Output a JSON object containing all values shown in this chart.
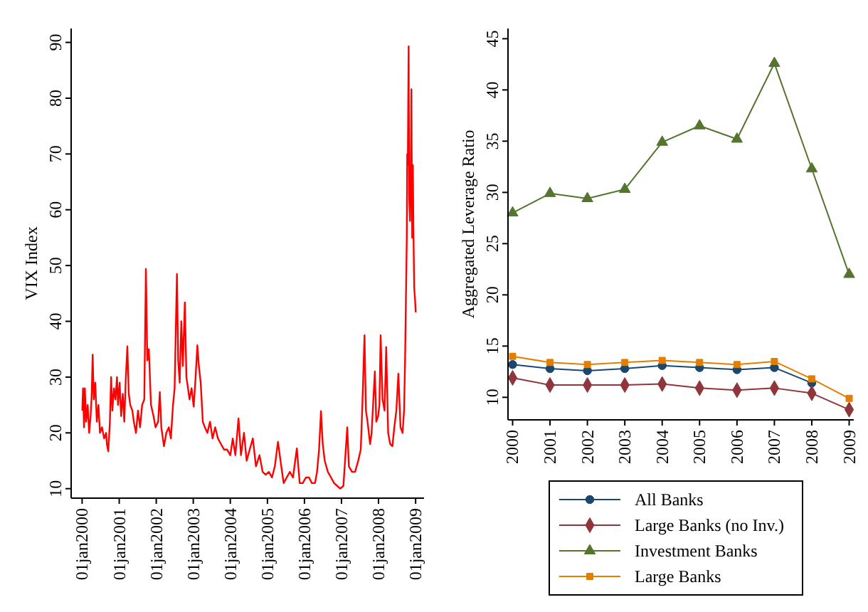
{
  "chart_data": [
    {
      "type": "line",
      "ylabel": "VIX Index",
      "xlim": [
        "1999-09-15",
        "2009-03-25"
      ],
      "ylim": [
        8.3,
        92.5
      ],
      "yticks": [
        10,
        20,
        30,
        40,
        50,
        60,
        70,
        80,
        90
      ],
      "xticks": [
        {
          "value": "2000-01-01",
          "label": "01jan2000"
        },
        {
          "value": "2001-01-01",
          "label": "01jan2001"
        },
        {
          "value": "2002-01-01",
          "label": "01jan2002"
        },
        {
          "value": "2003-01-01",
          "label": "01jan2003"
        },
        {
          "value": "2004-01-01",
          "label": "01jan2004"
        },
        {
          "value": "2005-01-01",
          "label": "01jan2005"
        },
        {
          "value": "2006-01-01",
          "label": "01jan2006"
        },
        {
          "value": "2007-01-01",
          "label": "01jan2007"
        },
        {
          "value": "2008-01-01",
          "label": "01jan2008"
        },
        {
          "value": "2009-01-01",
          "label": "01jan2009"
        }
      ],
      "grid": false,
      "legend": false,
      "marker": "none",
      "line_style": "solid",
      "series": [
        {
          "color": "#ff0000",
          "x": [
            "2000-01-03",
            "2000-01-10",
            "2000-01-20",
            "2000-01-28",
            "2000-02-10",
            "2000-02-25",
            "2000-03-10",
            "2000-03-25",
            "2000-04-05",
            "2000-04-14",
            "2000-04-25",
            "2000-05-10",
            "2000-05-25",
            "2000-06-10",
            "2000-06-25",
            "2000-07-15",
            "2000-08-05",
            "2000-08-25",
            "2000-09-01",
            "2000-09-15",
            "2000-10-01",
            "2000-10-13",
            "2000-10-25",
            "2000-11-10",
            "2000-11-25",
            "2000-12-10",
            "2000-12-20",
            "2001-01-05",
            "2001-01-20",
            "2001-02-05",
            "2001-02-20",
            "2001-03-05",
            "2001-03-22",
            "2001-04-05",
            "2001-04-20",
            "2001-05-10",
            "2001-05-25",
            "2001-06-15",
            "2001-07-05",
            "2001-07-25",
            "2001-08-15",
            "2001-09-05",
            "2001-09-21",
            "2001-10-05",
            "2001-10-20",
            "2001-11-10",
            "2001-12-05",
            "2001-12-25",
            "2002-01-20",
            "2002-02-05",
            "2002-02-20",
            "2002-03-18",
            "2002-04-10",
            "2002-05-05",
            "2002-05-25",
            "2002-06-15",
            "2002-07-01",
            "2002-07-24",
            "2002-08-05",
            "2002-08-20",
            "2002-09-05",
            "2002-09-20",
            "2002-10-10",
            "2002-10-25",
            "2002-11-10",
            "2002-11-25",
            "2002-12-15",
            "2003-01-05",
            "2003-01-24",
            "2003-02-10",
            "2003-02-25",
            "2003-03-15",
            "2003-04-05",
            "2003-04-25",
            "2003-05-20",
            "2003-06-15",
            "2003-07-10",
            "2003-08-05",
            "2003-09-01",
            "2003-10-01",
            "2003-11-01",
            "2003-12-01",
            "2004-01-01",
            "2004-01-25",
            "2004-02-20",
            "2004-03-22",
            "2004-04-15",
            "2004-05-15",
            "2004-06-10",
            "2004-07-10",
            "2004-08-10",
            "2004-09-10",
            "2004-10-15",
            "2004-11-15",
            "2004-12-15",
            "2005-01-15",
            "2005-02-15",
            "2005-03-15",
            "2005-04-15",
            "2005-05-10",
            "2005-06-10",
            "2005-07-10",
            "2005-08-10",
            "2005-09-10",
            "2005-10-18",
            "2005-11-15",
            "2005-12-15",
            "2006-01-15",
            "2006-02-15",
            "2006-03-15",
            "2006-04-15",
            "2006-05-05",
            "2006-05-25",
            "2006-06-13",
            "2006-06-30",
            "2006-07-20",
            "2006-08-20",
            "2006-09-20",
            "2006-10-20",
            "2006-11-20",
            "2006-12-20",
            "2007-01-20",
            "2007-02-27",
            "2007-03-15",
            "2007-04-15",
            "2007-05-15",
            "2007-06-15",
            "2007-07-10",
            "2007-07-26",
            "2007-08-16",
            "2007-08-30",
            "2007-09-15",
            "2007-10-10",
            "2007-10-25",
            "2007-11-26",
            "2007-12-10",
            "2007-12-28",
            "2008-01-10",
            "2008-01-22",
            "2008-02-10",
            "2008-03-01",
            "2008-03-17",
            "2008-04-05",
            "2008-04-25",
            "2008-05-17",
            "2008-06-05",
            "2008-06-25",
            "2008-07-15",
            "2008-08-05",
            "2008-08-25",
            "2008-09-09",
            "2008-09-19",
            "2008-09-29",
            "2008-10-06",
            "2008-10-10",
            "2008-10-16",
            "2008-10-24",
            "2008-10-30",
            "2008-11-07",
            "2008-11-14",
            "2008-11-20",
            "2008-11-28",
            "2008-12-05",
            "2008-12-10",
            "2008-12-18",
            "2008-12-26",
            "2009-01-02"
          ],
          "values": [
            24,
            28,
            21,
            28,
            22,
            25,
            20,
            23,
            27,
            34,
            26,
            29,
            22,
            25,
            20,
            21,
            19,
            20,
            18,
            16.7,
            22,
            30,
            24,
            28,
            26,
            30,
            25,
            29,
            23,
            27,
            22,
            29,
            35.5,
            27,
            25,
            24,
            22,
            20,
            24,
            21,
            25,
            26,
            49.4,
            33,
            35,
            25,
            23,
            21,
            22,
            27.3,
            21,
            17.6,
            20,
            21,
            19,
            25,
            28,
            48.5,
            33,
            29,
            40,
            32,
            43.4,
            30,
            28,
            26,
            28,
            24.7,
            30,
            35.7,
            32,
            29,
            22,
            21,
            20,
            22,
            19,
            21,
            19,
            18,
            17,
            17,
            16,
            19,
            16,
            22.6,
            16,
            20,
            15,
            17,
            19,
            14,
            16,
            13,
            12.5,
            13,
            12,
            14,
            18.4,
            15,
            11,
            12,
            13,
            12,
            17.2,
            11,
            11,
            12,
            12,
            11,
            11,
            13,
            17,
            23.9,
            18,
            15,
            13,
            12,
            11,
            10.5,
            10,
            10.5,
            21,
            14,
            13,
            13,
            15,
            17,
            25,
            37.5,
            24,
            22,
            18,
            20,
            31,
            22,
            23,
            25,
            37.5,
            26,
            24,
            35.4,
            20,
            18,
            17.6,
            21,
            24,
            30.6,
            21,
            20,
            24,
            33,
            46,
            55,
            70,
            68,
            89.3,
            62,
            58,
            66,
            81.6,
            55,
            68,
            57,
            46,
            44,
            41.6
          ]
        }
      ]
    },
    {
      "type": "line",
      "ylabel": "Aggregated Leverage Ratio",
      "categories": [
        "2000",
        "2001",
        "2002",
        "2003",
        "2004",
        "2005",
        "2006",
        "2007",
        "2008",
        "2009"
      ],
      "ylim": [
        7.8,
        46
      ],
      "yticks": [
        10,
        15,
        20,
        25,
        30,
        35,
        40,
        45
      ],
      "grid": false,
      "legend": "bottom",
      "line_style": "solid",
      "series": [
        {
          "name": "All Banks",
          "color": "#1a476f",
          "marker": "circle",
          "values": [
            13.2,
            12.8,
            12.6,
            12.8,
            13.1,
            12.9,
            12.7,
            12.9,
            11.4,
            null
          ]
        },
        {
          "name": "Large Banks (no Inv.)",
          "color": "#90353b",
          "marker": "diamond",
          "values": [
            11.9,
            11.2,
            11.2,
            11.2,
            11.3,
            10.9,
            10.7,
            10.9,
            10.4,
            8.8
          ]
        },
        {
          "name": "Investment Banks",
          "color": "#55752f",
          "marker": "triangle",
          "values": [
            28.0,
            29.9,
            29.4,
            30.3,
            34.9,
            36.5,
            35.2,
            42.6,
            32.3,
            22.0
          ]
        },
        {
          "name": "Large Banks",
          "color": "#e37e00",
          "marker": "square",
          "values": [
            14.0,
            13.4,
            13.2,
            13.4,
            13.6,
            13.4,
            13.2,
            13.5,
            11.8,
            9.9
          ]
        }
      ]
    }
  ]
}
